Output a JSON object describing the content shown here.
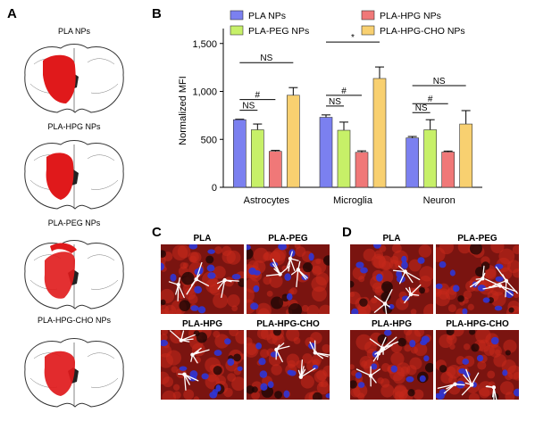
{
  "panels": {
    "a": "A",
    "b": "B",
    "c": "C",
    "d": "D"
  },
  "brains": [
    {
      "label": "PLA NPs"
    },
    {
      "label": "PLA-HPG NPs"
    },
    {
      "label": "PLA-PEG NPs"
    },
    {
      "label": "PLA-HPG-CHO NPs"
    }
  ],
  "micro_c": [
    "PLA",
    "PLA-PEG",
    "PLA-HPG",
    "PLA-HPG-CHO"
  ],
  "micro_d": [
    "PLA",
    "PLA-PEG",
    "PLA-HPG",
    "PLA-HPG-CHO"
  ],
  "colors": {
    "lesion": "#e0191b",
    "micro_bg": "#7a1410",
    "nuclei": "#2f35d6",
    "glia": "#ffffff"
  },
  "chart_data": {
    "type": "bar",
    "ylabel": "Normalized MFI",
    "ylim": [
      0,
      1600
    ],
    "yticks": [
      0,
      500,
      1000,
      1500
    ],
    "ytick_labels": [
      "0",
      "500",
      "1,000",
      "1,500"
    ],
    "categories": [
      "Astrocytes",
      "Microglia",
      "Neuron"
    ],
    "legend_position": "top",
    "series": [
      {
        "name": "PLA NPs",
        "color": "#7b80f0",
        "values": [
          705,
          730,
          515
        ],
        "errors": [
          5,
          25,
          15
        ]
      },
      {
        "name": "PLA-PEG NPs",
        "color": "#c7f068",
        "values": [
          600,
          595,
          600
        ],
        "errors": [
          60,
          85,
          105
        ]
      },
      {
        "name": "PLA-HPG NPs",
        "color": "#f07878",
        "values": [
          375,
          365,
          368
        ],
        "errors": [
          10,
          15,
          10
        ]
      },
      {
        "name": "PLA-HPG-CHO NPs",
        "color": "#f8d070",
        "values": [
          960,
          1135,
          660
        ],
        "errors": [
          80,
          120,
          140
        ]
      }
    ],
    "significance": [
      {
        "group": 0,
        "from": 0,
        "to": 1,
        "label": "NS"
      },
      {
        "group": 0,
        "from": 0,
        "to": 2,
        "label": "#"
      },
      {
        "group": 0,
        "from": 0,
        "to": 3,
        "label": "NS"
      },
      {
        "group": 1,
        "from": 0,
        "to": 1,
        "label": "NS"
      },
      {
        "group": 1,
        "from": 0,
        "to": 2,
        "label": "#"
      },
      {
        "group": 1,
        "from": 0,
        "to": 3,
        "label": "*"
      },
      {
        "group": 2,
        "from": 0,
        "to": 1,
        "label": "NS"
      },
      {
        "group": 2,
        "from": 0,
        "to": 2,
        "label": "#"
      },
      {
        "group": 2,
        "from": 0,
        "to": 3,
        "label": "NS"
      }
    ]
  }
}
